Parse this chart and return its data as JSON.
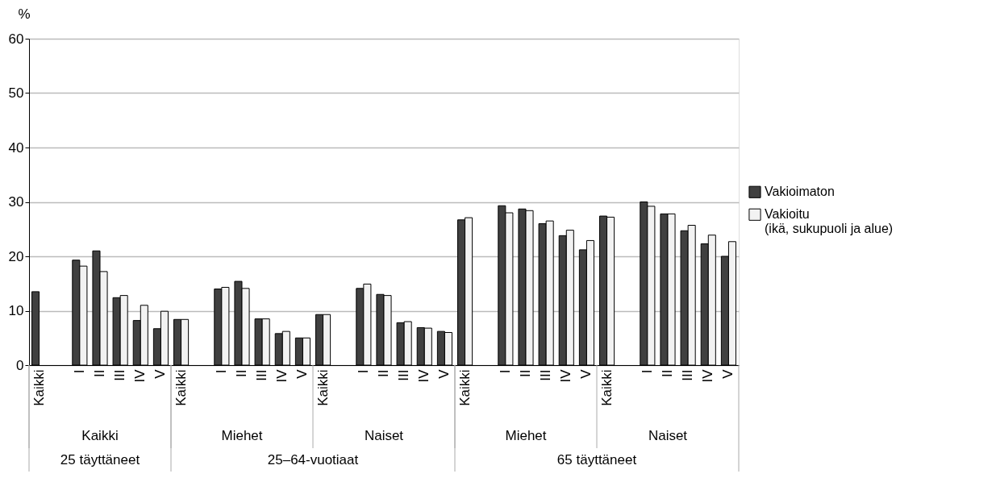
{
  "chart_data": {
    "type": "bar",
    "ylabel": "%",
    "categories": [
      "Kaikki",
      null,
      "I",
      "II",
      "III",
      "IV",
      "V",
      "Kaikki",
      null,
      "I",
      "II",
      "III",
      "IV",
      "V",
      "Kaikki",
      null,
      "I",
      "II",
      "III",
      "IV",
      "V",
      "Kaikki",
      null,
      "I",
      "II",
      "III",
      "IV",
      "V",
      "Kaikki",
      null,
      "I",
      "II",
      "III",
      "IV",
      "V"
    ],
    "series": [
      {
        "name": "Vakioimaton",
        "color": "#404040",
        "values": [
          13.5,
          null,
          19.3,
          21.0,
          12.4,
          8.2,
          6.7,
          8.4,
          null,
          14.0,
          15.4,
          8.5,
          5.8,
          5.0,
          9.3,
          null,
          14.1,
          13.0,
          7.8,
          6.9,
          6.2,
          26.7,
          null,
          29.3,
          28.7,
          26.0,
          23.8,
          21.2,
          27.4,
          null,
          30.0,
          27.8,
          24.7,
          22.3,
          20.0
        ]
      },
      {
        "name": "Vakioitu\n(ikä, sukupuoli ja alue)",
        "color": "#f2f2f2",
        "values": [
          null,
          null,
          18.2,
          17.2,
          12.8,
          11.0,
          9.9,
          8.4,
          null,
          14.3,
          14.1,
          8.5,
          6.2,
          5.0,
          9.3,
          null,
          14.9,
          12.8,
          8.0,
          6.8,
          6.0,
          27.1,
          null,
          28.0,
          28.4,
          26.5,
          24.8,
          22.9,
          27.2,
          null,
          29.2,
          27.8,
          25.7,
          23.9,
          22.7
        ]
      }
    ],
    "ylim": [
      0,
      60
    ],
    "yticks": [
      0,
      10,
      20,
      30,
      40,
      50,
      60
    ],
    "grid": "y",
    "legend": "right",
    "annotations": [
      "Kaikki",
      "Miehet",
      "Naiset",
      "Miehet",
      "Naiset",
      "25 täyttäneet",
      "25–64-vuotiaat",
      "65 täyttäneet"
    ]
  }
}
